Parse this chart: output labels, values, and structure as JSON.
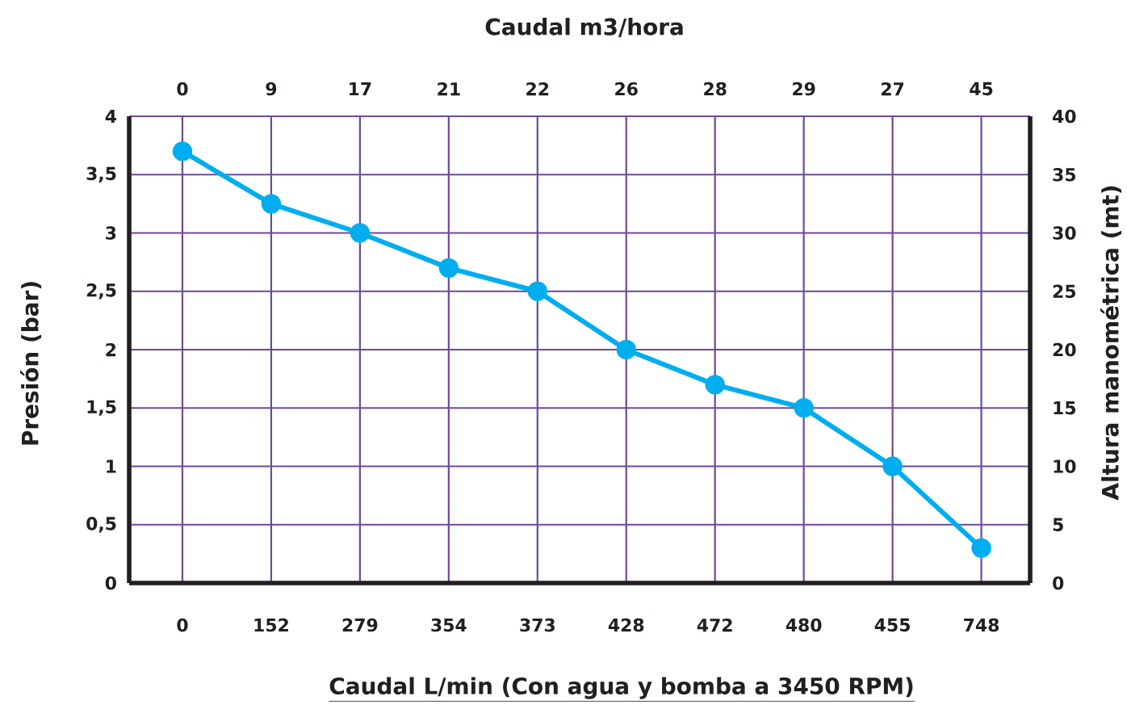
{
  "chart_data": {
    "type": "line",
    "x2label": "Caudal m3/hora",
    "xlabel": "Caudal L/min (Con agua y bomba a 3450 RPM)",
    "ylabel": "Presión (bar)",
    "y2label": "Altura manométrica (mt)",
    "categories": [
      "0",
      "152",
      "279",
      "354",
      "373",
      "428",
      "472",
      "480",
      "455",
      "748"
    ],
    "annotations": [
      "0",
      "9",
      "17",
      "21",
      "22",
      "26",
      "28",
      "29",
      "27",
      "45"
    ],
    "series": [
      {
        "color": "#00aeef",
        "values": [
          3.7,
          3.25,
          3.0,
          2.7,
          2.5,
          2.0,
          1.7,
          1.5,
          1.0,
          0.3
        ]
      }
    ],
    "ylim": [
      0,
      4
    ],
    "yticks": [
      0,
      {
        "value": 0.5,
        "label": "0,5"
      },
      1,
      {
        "value": 1.5,
        "label": "1,5"
      },
      2,
      {
        "value": 2.5,
        "label": "2,5"
      },
      3,
      {
        "value": 3.5,
        "label": "3,5"
      },
      4
    ],
    "y2lim": [
      0,
      40
    ],
    "y2ticks": [
      0,
      5,
      10,
      15,
      20,
      25,
      30,
      35,
      40
    ],
    "grid": true,
    "marker": "circle",
    "line_style": "solid"
  }
}
